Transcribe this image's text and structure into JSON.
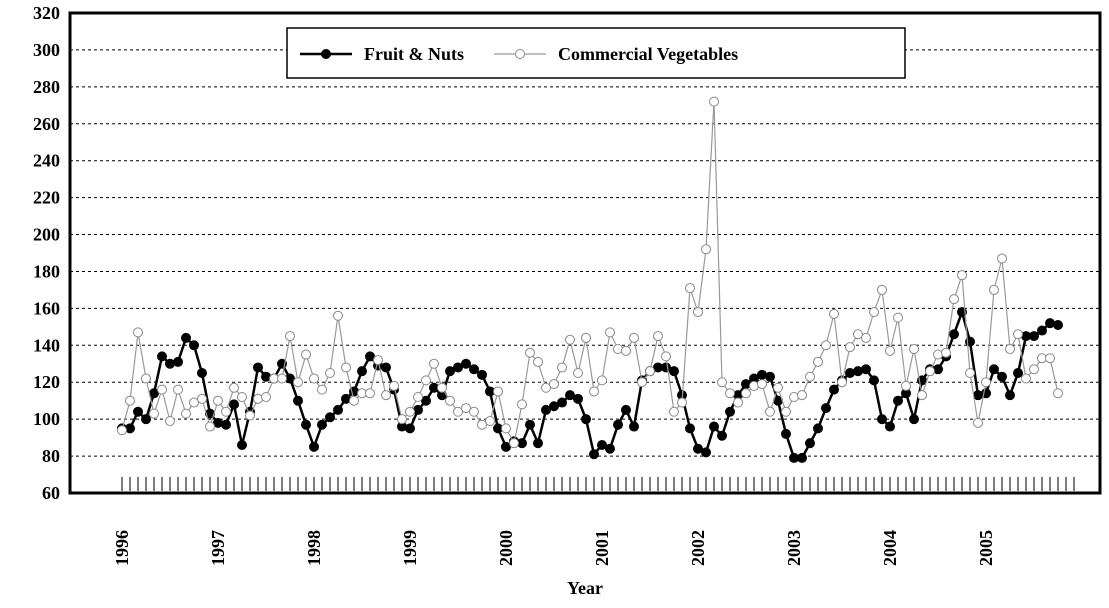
{
  "chart_data": {
    "type": "line",
    "x_label": "Year",
    "categories": [
      "1996",
      null,
      null,
      null,
      null,
      null,
      null,
      null,
      null,
      null,
      null,
      null,
      "1997",
      null,
      null,
      null,
      null,
      null,
      null,
      null,
      null,
      null,
      null,
      null,
      "1998",
      null,
      null,
      null,
      null,
      null,
      null,
      null,
      null,
      null,
      null,
      null,
      "1999",
      null,
      null,
      null,
      null,
      null,
      null,
      null,
      null,
      null,
      null,
      null,
      "2000",
      null,
      null,
      null,
      null,
      null,
      null,
      null,
      null,
      null,
      null,
      null,
      "2001",
      null,
      null,
      null,
      null,
      null,
      null,
      null,
      null,
      null,
      null,
      null,
      "2002",
      null,
      null,
      null,
      null,
      null,
      null,
      null,
      null,
      null,
      null,
      null,
      "2003",
      null,
      null,
      null,
      null,
      null,
      null,
      null,
      null,
      null,
      null,
      null,
      "2004",
      null,
      null,
      null,
      null,
      null,
      null,
      null,
      null,
      null,
      null,
      null,
      "2005",
      null,
      null,
      null,
      null,
      null,
      null,
      null,
      null,
      null,
      null,
      null
    ],
    "series": [
      {
        "name": "Fruit & Nuts",
        "color": "#000000",
        "marker": "filled",
        "values": [
          95,
          95,
          104,
          100,
          114,
          134,
          130,
          131,
          144,
          140,
          125,
          103,
          98,
          97,
          108,
          86,
          104,
          128,
          123,
          122,
          130,
          122,
          110,
          97,
          85,
          97,
          101,
          105,
          111,
          115,
          126,
          134,
          129,
          128,
          116,
          96,
          95,
          105,
          110,
          117,
          113,
          126,
          128,
          130,
          127,
          124,
          115,
          95,
          85,
          88,
          87,
          97,
          87,
          105,
          107,
          109,
          113,
          111,
          100,
          81,
          86,
          84,
          97,
          105,
          96,
          121,
          126,
          128,
          128,
          126,
          113,
          95,
          84,
          82,
          96,
          91,
          104,
          113,
          119,
          122,
          124,
          123,
          110,
          92,
          79,
          79,
          87,
          95,
          106,
          116,
          121,
          125,
          126,
          127,
          121,
          100,
          96,
          110,
          114,
          100,
          121,
          127,
          127,
          134,
          146,
          158,
          142,
          113,
          114,
          127,
          123,
          113,
          125,
          145,
          145,
          148,
          152,
          151,
          null,
          null
        ]
      },
      {
        "name": "Commercial Vegetables",
        "color": "#999999",
        "marker": "open",
        "values": [
          94,
          110,
          147,
          122,
          103,
          116,
          99,
          116,
          103,
          109,
          111,
          96,
          110,
          104,
          117,
          112,
          102,
          111,
          112,
          122,
          122,
          145,
          120,
          135,
          122,
          116,
          125,
          156,
          128,
          110,
          114,
          114,
          132,
          113,
          118,
          100,
          104,
          112,
          121,
          130,
          117,
          110,
          104,
          106,
          104,
          97,
          99,
          115,
          95,
          87,
          108,
          136,
          131,
          117,
          119,
          128,
          143,
          125,
          144,
          115,
          121,
          147,
          138,
          137,
          144,
          120,
          126,
          145,
          134,
          104,
          109,
          171,
          158,
          192,
          272,
          120,
          114,
          109,
          114,
          118,
          119,
          104,
          117,
          104,
          112,
          113,
          123,
          131,
          140,
          157,
          120,
          139,
          146,
          144,
          158,
          170,
          137,
          155,
          118,
          138,
          113,
          126,
          135,
          136,
          165,
          178,
          125,
          98,
          120,
          170,
          187,
          138,
          146,
          122,
          127,
          133,
          133,
          114,
          null,
          null
        ]
      }
    ],
    "ylim": [
      60,
      320
    ],
    "yticks": [
      60,
      80,
      100,
      120,
      140,
      160,
      180,
      200,
      220,
      240,
      260,
      280,
      300,
      320
    ],
    "grid": true,
    "legend": "top"
  }
}
